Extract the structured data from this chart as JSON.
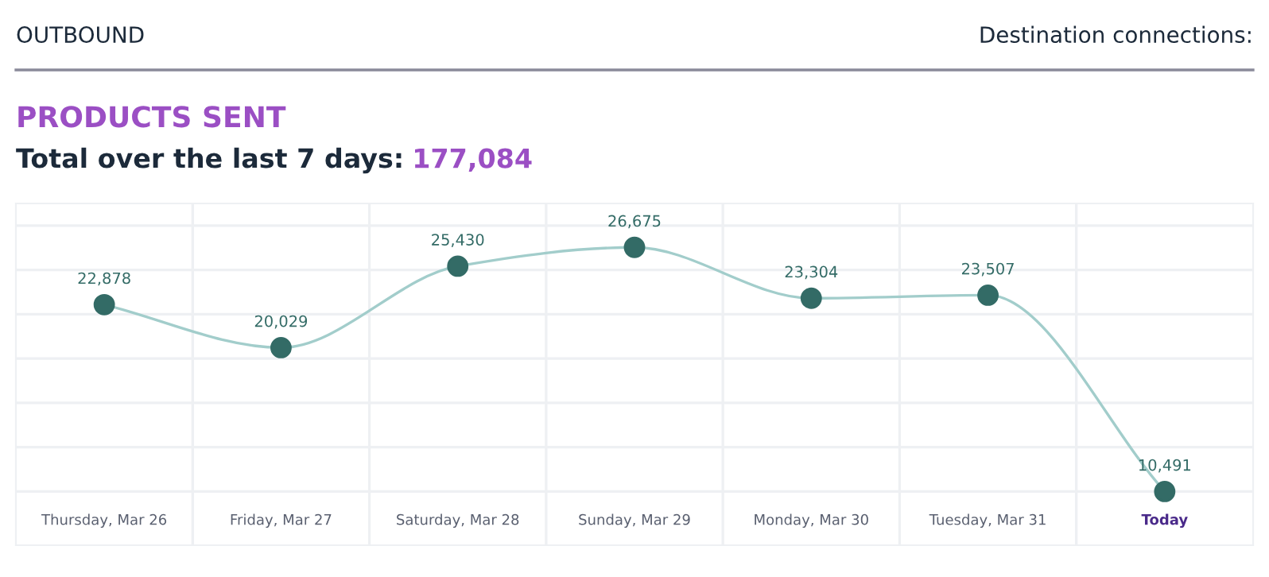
{
  "chart_data": {
    "type": "line",
    "title": "PRODUCTS SENT",
    "subtitle": "Total over the last 7 days: 177,084",
    "annotations": [
      "OUTBOUND",
      "Destination connections:"
    ],
    "categories": [
      "Thursday, Mar 26",
      "Friday, Mar 27",
      "Saturday, Mar 28",
      "Sunday, Mar 29",
      "Monday, Mar 30",
      "Tuesday, Mar 31",
      "Today"
    ],
    "series": [
      {
        "color": "#336b66",
        "values": [
          22878,
          20029,
          25430,
          26675,
          23304,
          23507,
          10491
        ],
        "value_labels": [
          "22,878",
          "20,029",
          "25,430",
          "26,675",
          "23,304",
          "23,507",
          "10,491"
        ]
      }
    ],
    "grid": true,
    "marker": "circle",
    "line_style": "solid"
  }
}
